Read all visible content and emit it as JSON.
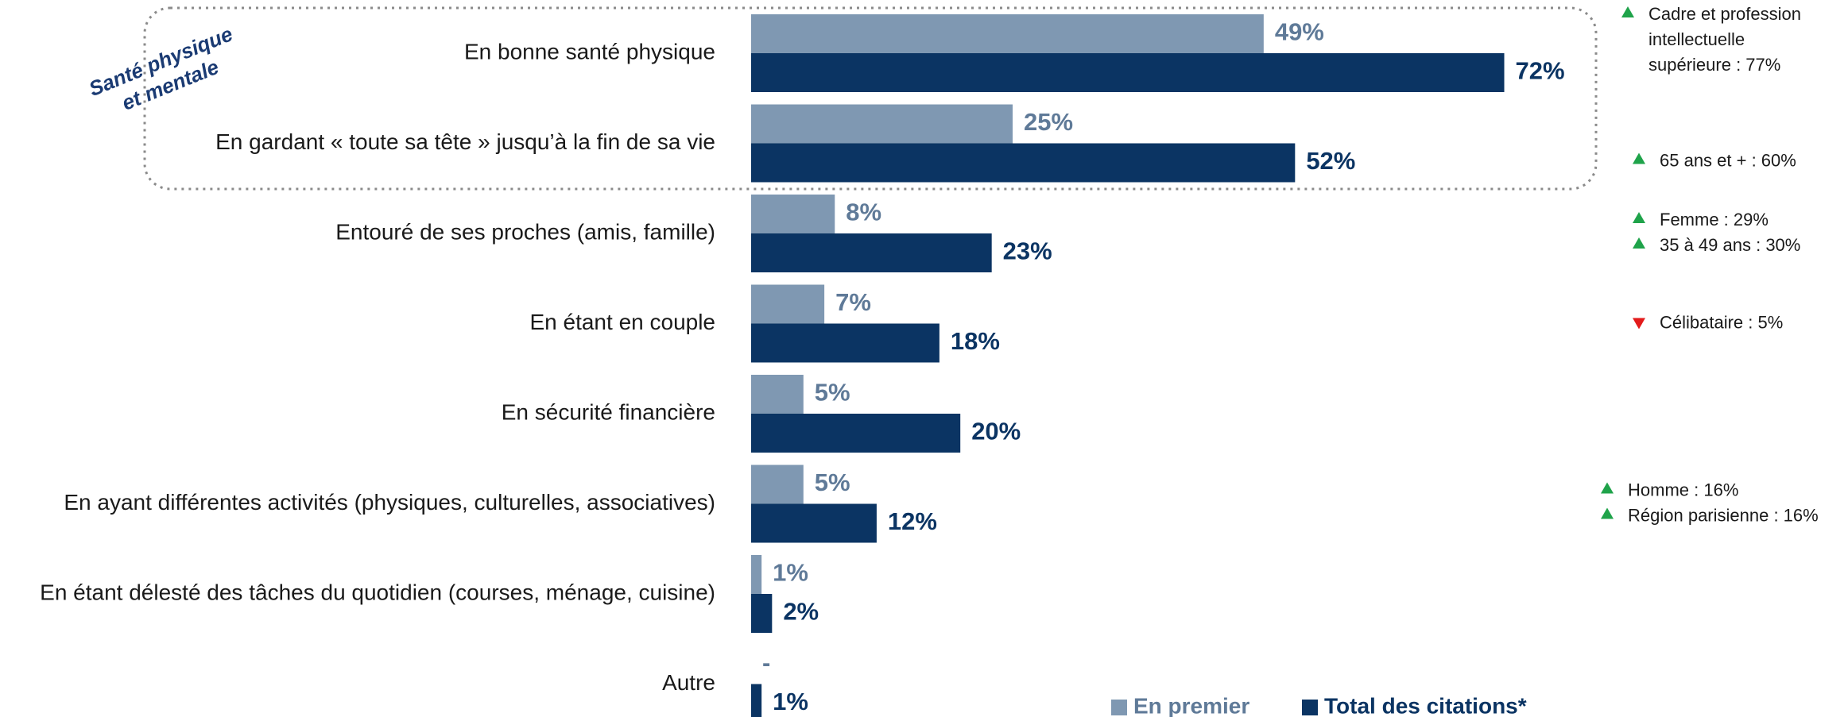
{
  "chart_data": {
    "type": "bar",
    "orientation": "horizontal",
    "categories": [
      "En bonne santé physique",
      "En gardant « toute sa tête » jusqu’à la fin de sa vie",
      "Entouré de ses proches (amis, famille)",
      "En étant en couple",
      "En sécurité financière",
      "En ayant différentes activités (physiques, culturelles, associatives)",
      "En étant délesté des tâches du quotidien (courses, ménage, cuisine)",
      "Autre"
    ],
    "series": [
      {
        "name": "En premier",
        "color": "#7f98b2",
        "values": [
          49,
          25,
          8,
          7,
          5,
          5,
          1,
          null
        ],
        "value_labels": [
          "49%",
          "25%",
          "8%",
          "7%",
          "5%",
          "5%",
          "1%",
          "-"
        ]
      },
      {
        "name": "Total des citations*",
        "color": "#0b3463",
        "values": [
          72,
          52,
          23,
          18,
          20,
          12,
          2,
          1
        ],
        "value_labels": [
          "72%",
          "52%",
          "23%",
          "18%",
          "20%",
          "12%",
          "2%",
          "1%"
        ]
      }
    ],
    "xlim": [
      0,
      100
    ],
    "group": {
      "lines": [
        "Santé physique",
        "et mentale"
      ]
    },
    "annotations": [
      [
        {
          "direction": "up",
          "lines": [
            "Cadre et profession",
            "intellectuelle",
            "supérieure : 77%"
          ]
        }
      ],
      [
        {
          "direction": "up",
          "lines": [
            "65 ans et + : 60%"
          ]
        }
      ],
      [
        {
          "direction": "up",
          "lines": [
            "Femme : 29%"
          ]
        },
        {
          "direction": "up",
          "lines": [
            "35 à 49 ans : 30%"
          ]
        }
      ],
      [
        {
          "direction": "down",
          "lines": [
            "Célibataire : 5%"
          ]
        }
      ],
      null,
      [
        {
          "direction": "up",
          "lines": [
            "Homme : 16%"
          ]
        },
        {
          "direction": "up",
          "lines": [
            "Région parisienne : 16%"
          ]
        }
      ],
      null,
      null
    ]
  }
}
